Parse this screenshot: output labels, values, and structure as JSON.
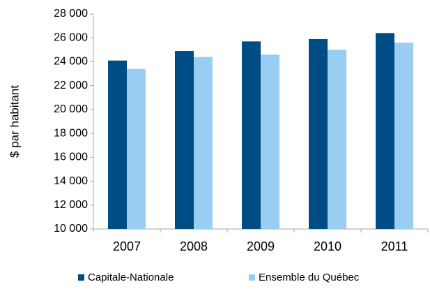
{
  "chart_data": {
    "type": "bar",
    "y_label": "$ par habitant",
    "categories": [
      "2007",
      "2008",
      "2009",
      "2010",
      "2011"
    ],
    "series": [
      {
        "name": "Capitale-Nationale",
        "color": "#004c84",
        "values": [
          24100,
          24900,
          25700,
          25900,
          26400
        ]
      },
      {
        "name": "Ensemble du Québec",
        "color": "#99cdf2",
        "values": [
          23400,
          24400,
          24600,
          25000,
          25600
        ]
      }
    ],
    "ylim": [
      10000,
      28000
    ],
    "yticks": [
      {
        "value": 10000,
        "label": "10 000"
      },
      {
        "value": 12000,
        "label": "12 000"
      },
      {
        "value": 14000,
        "label": "14 000"
      },
      {
        "value": 16000,
        "label": "16 000"
      },
      {
        "value": 18000,
        "label": "18 000"
      },
      {
        "value": 20000,
        "label": "20 000"
      },
      {
        "value": 22000,
        "label": "22 000"
      },
      {
        "value": 24000,
        "label": "24 000"
      },
      {
        "value": 26000,
        "label": "26 000"
      },
      {
        "value": 28000,
        "label": "28 000"
      }
    ],
    "legend": "bottom"
  }
}
